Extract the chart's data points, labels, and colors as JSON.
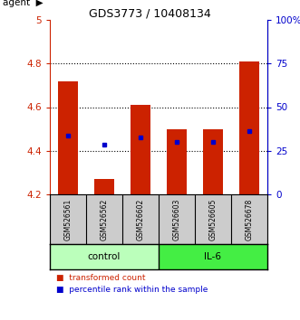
{
  "title": "GDS3773 / 10408134",
  "samples": [
    "GSM526561",
    "GSM526562",
    "GSM526602",
    "GSM526603",
    "GSM526605",
    "GSM526678"
  ],
  "bar_bottoms": [
    4.2,
    4.2,
    4.2,
    4.2,
    4.2,
    4.2
  ],
  "bar_tops": [
    4.72,
    4.27,
    4.61,
    4.5,
    4.5,
    4.81
  ],
  "percentile_values": [
    4.47,
    4.43,
    4.46,
    4.44,
    4.44,
    4.49
  ],
  "ylim": [
    4.2,
    5.0
  ],
  "yticks": [
    4.2,
    4.4,
    4.6,
    4.8,
    5.0
  ],
  "ytick_labels": [
    "4.2",
    "4.4",
    "4.6",
    "4.8",
    "5"
  ],
  "right_yticks": [
    0,
    25,
    50,
    75,
    100
  ],
  "right_ytick_labels": [
    "0",
    "25",
    "50",
    "75",
    "100%"
  ],
  "bar_color": "#cc2200",
  "percentile_color": "#0000cc",
  "groups": [
    {
      "label": "control",
      "indices": [
        0,
        1,
        2
      ],
      "color": "#bbffbb"
    },
    {
      "label": "IL-6",
      "indices": [
        3,
        4,
        5
      ],
      "color": "#44ee44"
    }
  ],
  "agent_label": "agent",
  "legend_items": [
    {
      "label": "transformed count",
      "color": "#cc2200"
    },
    {
      "label": "percentile rank within the sample",
      "color": "#0000cc"
    }
  ],
  "title_color": "#000000",
  "left_axis_color": "#cc2200",
  "right_axis_color": "#0000cc",
  "grid_color": "#000000",
  "sample_bg_color": "#cccccc",
  "background_color": "#ffffff"
}
